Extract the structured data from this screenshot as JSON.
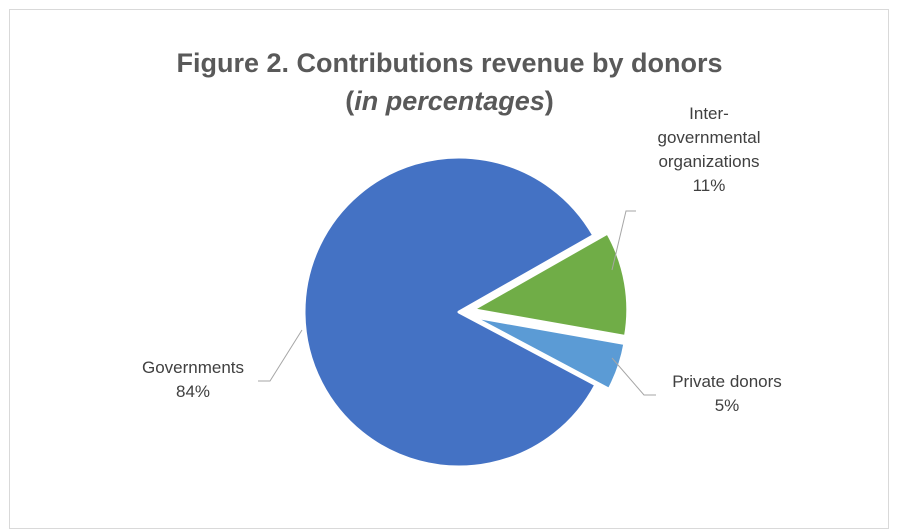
{
  "chart_data": {
    "type": "pie",
    "title": "Figure 2. Contributions revenue by donors",
    "subtitle_open": "(",
    "subtitle_italic": "in percentages",
    "subtitle_close": ")",
    "slices": [
      {
        "label_lines": [
          "Governments"
        ],
        "value": 84,
        "value_label": "84%",
        "color": "#4472c4",
        "exploded": false
      },
      {
        "label_lines": [
          "Inter-",
          "governmental",
          "organizations"
        ],
        "value": 11,
        "value_label": "11%",
        "color": "#70ad47",
        "exploded": true
      },
      {
        "label_lines": [
          "Private donors"
        ],
        "value": 5,
        "value_label": "5%",
        "color": "#5b9bd5",
        "exploded": true
      }
    ]
  }
}
